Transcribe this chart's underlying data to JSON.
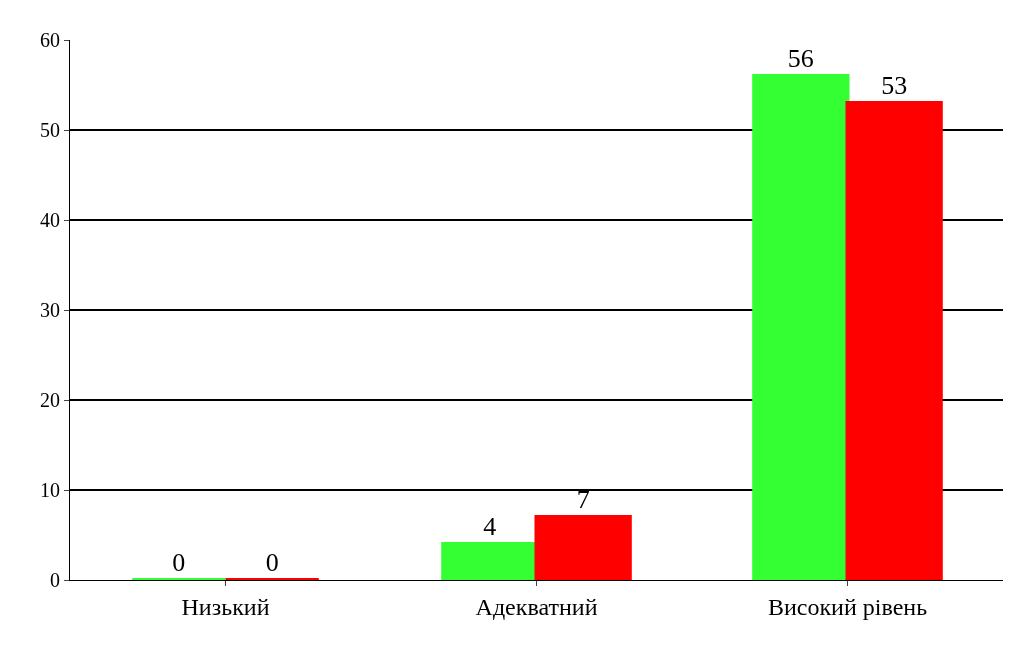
{
  "chart_data": {
    "type": "bar",
    "categories": [
      "Низький",
      "Адекватний",
      "Високий рівень"
    ],
    "series": [
      {
        "color": "#33ff33",
        "values": [
          0,
          4,
          56
        ]
      },
      {
        "color": "#ff0000",
        "values": [
          0,
          7,
          53
        ]
      }
    ],
    "ylim": [
      0,
      60
    ],
    "yticks": [
      0,
      10,
      20,
      30,
      40,
      50,
      60
    ],
    "grid": "y",
    "data_labels": true
  }
}
